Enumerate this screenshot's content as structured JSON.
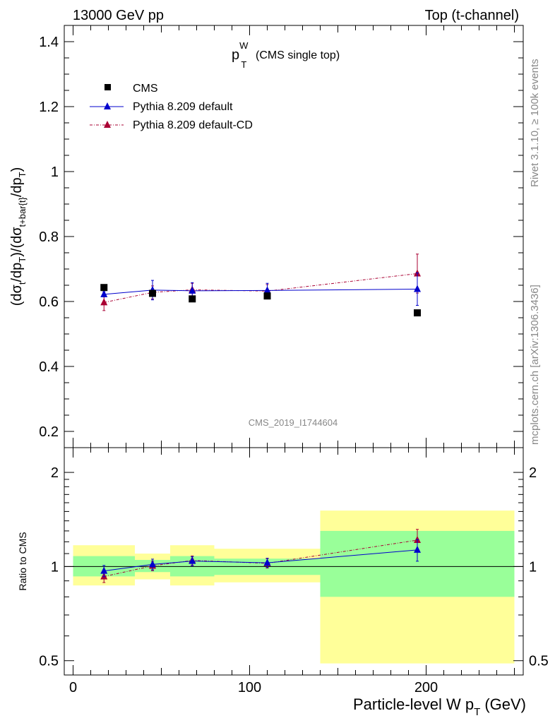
{
  "header": {
    "left": "13000 GeV pp",
    "right": "Top (t-channel)"
  },
  "side_labels": {
    "rivet": "Rivet 3.1.10, ≥ 100k events",
    "mcplots": "mcplots.cern.ch [arXiv:1306.3436]"
  },
  "watermark": "CMS_2019_I1744604",
  "colors": {
    "cms": "#000000",
    "pythia": "#0000cc",
    "pythia_cd": "#aa0033",
    "band_inner": "#99ff99",
    "band_outer": "#ffff99"
  },
  "chart_data": [
    {
      "type": "scatter",
      "title": "p_T^W (CMS single top)",
      "title_main": "p",
      "title_sub": "T",
      "title_sup": "W",
      "title_rest": "(CMS single top)",
      "ylabel": "(dσ_t/dp_T)/(dσ_t+bar{t}/dp_T)",
      "ylabel_parts": [
        "(dσ",
        "t",
        "/dp",
        "T",
        ")/(dσ",
        "t+bar{t}",
        "/dp",
        "T",
        ")"
      ],
      "ylim": [
        0.15,
        1.45
      ],
      "yticks": [
        0.2,
        0.4,
        0.6,
        0.8,
        1.0,
        1.2,
        1.4
      ],
      "ytick_labels": [
        "0.2",
        "0.4",
        "0.6",
        "0.8",
        "1",
        "1.2",
        "1.4"
      ],
      "legend_position": "top-left",
      "series": [
        {
          "name": "CMS",
          "style": "markers",
          "x": [
            17.5,
            45,
            67.5,
            110,
            195
          ],
          "y": [
            0.643,
            0.625,
            0.608,
            0.617,
            0.565
          ],
          "xerr_lo": [
            17.5,
            10,
            12.5,
            30,
            55
          ],
          "xerr_hi": [
            17.5,
            10,
            12.5,
            30,
            55
          ]
        },
        {
          "name": "Pythia 8.209 default",
          "style": "line-triangle",
          "x": [
            17.5,
            45,
            67.5,
            110,
            195
          ],
          "y": [
            0.622,
            0.635,
            0.633,
            0.634,
            0.638
          ],
          "yerr": [
            0.008,
            0.03,
            0.025,
            0.022,
            0.05
          ]
        },
        {
          "name": "Pythia 8.209 default-CD",
          "style": "dashdot-triangle",
          "x": [
            17.5,
            45,
            67.5,
            110,
            195
          ],
          "y": [
            0.597,
            0.628,
            0.636,
            0.632,
            0.686
          ],
          "yerr": [
            0.025,
            0.02,
            0.02,
            0.02,
            0.06
          ]
        }
      ]
    },
    {
      "type": "scatter",
      "title": "",
      "ylabel": "Ratio to CMS",
      "xlabel": "Particle-level W p_T (GeV)",
      "xlabel_main": "Particle-level W p",
      "xlabel_sub": "T",
      "xlabel_unit": "(GeV)",
      "xlim": [
        -5,
        255
      ],
      "xticks": [
        0,
        100,
        200
      ],
      "xtick_labels": [
        "0",
        "100",
        "200"
      ],
      "ylim": [
        0.45,
        2.4
      ],
      "yscale": "log",
      "yticks": [
        0.5,
        1,
        2
      ],
      "ytick_labels": [
        "0.5",
        "1",
        "2"
      ],
      "bands": {
        "edges": [
          0,
          35,
          55,
          80,
          140,
          250
        ],
        "inner": [
          [
            0.93,
            1.08
          ],
          [
            0.96,
            1.05
          ],
          [
            0.93,
            1.08
          ],
          [
            0.94,
            1.06
          ],
          [
            0.8,
            1.3
          ]
        ],
        "outer": [
          [
            0.87,
            1.17
          ],
          [
            0.91,
            1.1
          ],
          [
            0.87,
            1.17
          ],
          [
            0.89,
            1.14
          ],
          [
            0.49,
            1.51
          ]
        ]
      },
      "series": [
        {
          "name": "Pythia 8.209 default",
          "x": [
            17.5,
            45,
            67.5,
            110,
            195
          ],
          "y": [
            0.968,
            1.016,
            1.041,
            1.028,
            1.13
          ],
          "yerr": [
            0.04,
            0.04,
            0.035,
            0.035,
            0.09
          ]
        },
        {
          "name": "Pythia 8.209 default-CD",
          "x": [
            17.5,
            45,
            67.5,
            110,
            195
          ],
          "y": [
            0.929,
            1.005,
            1.046,
            1.024,
            1.215
          ],
          "yerr": [
            0.04,
            0.035,
            0.035,
            0.035,
            0.1
          ]
        }
      ]
    }
  ]
}
